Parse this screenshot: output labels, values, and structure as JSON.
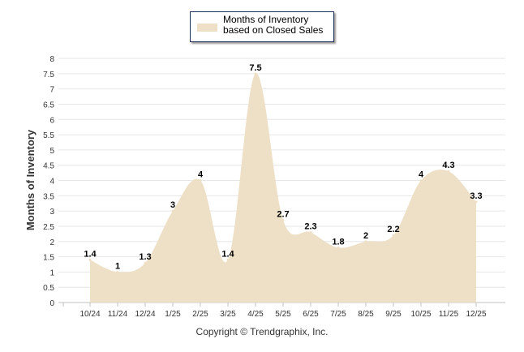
{
  "chart_data": {
    "type": "area",
    "title": "",
    "legend": {
      "label": "Months of Inventory based on Closed Sales",
      "placement": "top-center"
    },
    "categories": [
      "10/24",
      "11/24",
      "12/24",
      "1/25",
      "2/25",
      "3/25",
      "4/25",
      "5/25",
      "6/25",
      "7/25",
      "8/25",
      "9/25",
      "10/25",
      "11/25",
      "12/25"
    ],
    "series": [
      {
        "name": "Months of Inventory based on Closed Sales",
        "values": [
          1.4,
          1,
          1.3,
          3,
          4,
          1.4,
          7.5,
          2.7,
          2.3,
          1.8,
          2,
          2.2,
          4,
          4.3,
          3.3
        ],
        "color": "#ede0c6"
      }
    ],
    "data_labels": [
      "1.4",
      "1",
      "1.3",
      "3",
      "4",
      "1.4",
      "7.5",
      "2.7",
      "2.3",
      "1.8",
      "2",
      "2.2",
      "4",
      "4.3",
      "3.3"
    ],
    "xlabel": "",
    "ylabel": "Months of Inventory",
    "ylim": [
      0,
      8
    ],
    "yticks": [
      "0",
      "0.5",
      "1",
      "1.5",
      "2",
      "2.5",
      "3",
      "3.5",
      "4",
      "4.5",
      "5",
      "5.5",
      "6",
      "6.5",
      "7",
      "7.5",
      "8"
    ],
    "grid": true
  },
  "credit": "Copyright © Trendgraphix, Inc."
}
